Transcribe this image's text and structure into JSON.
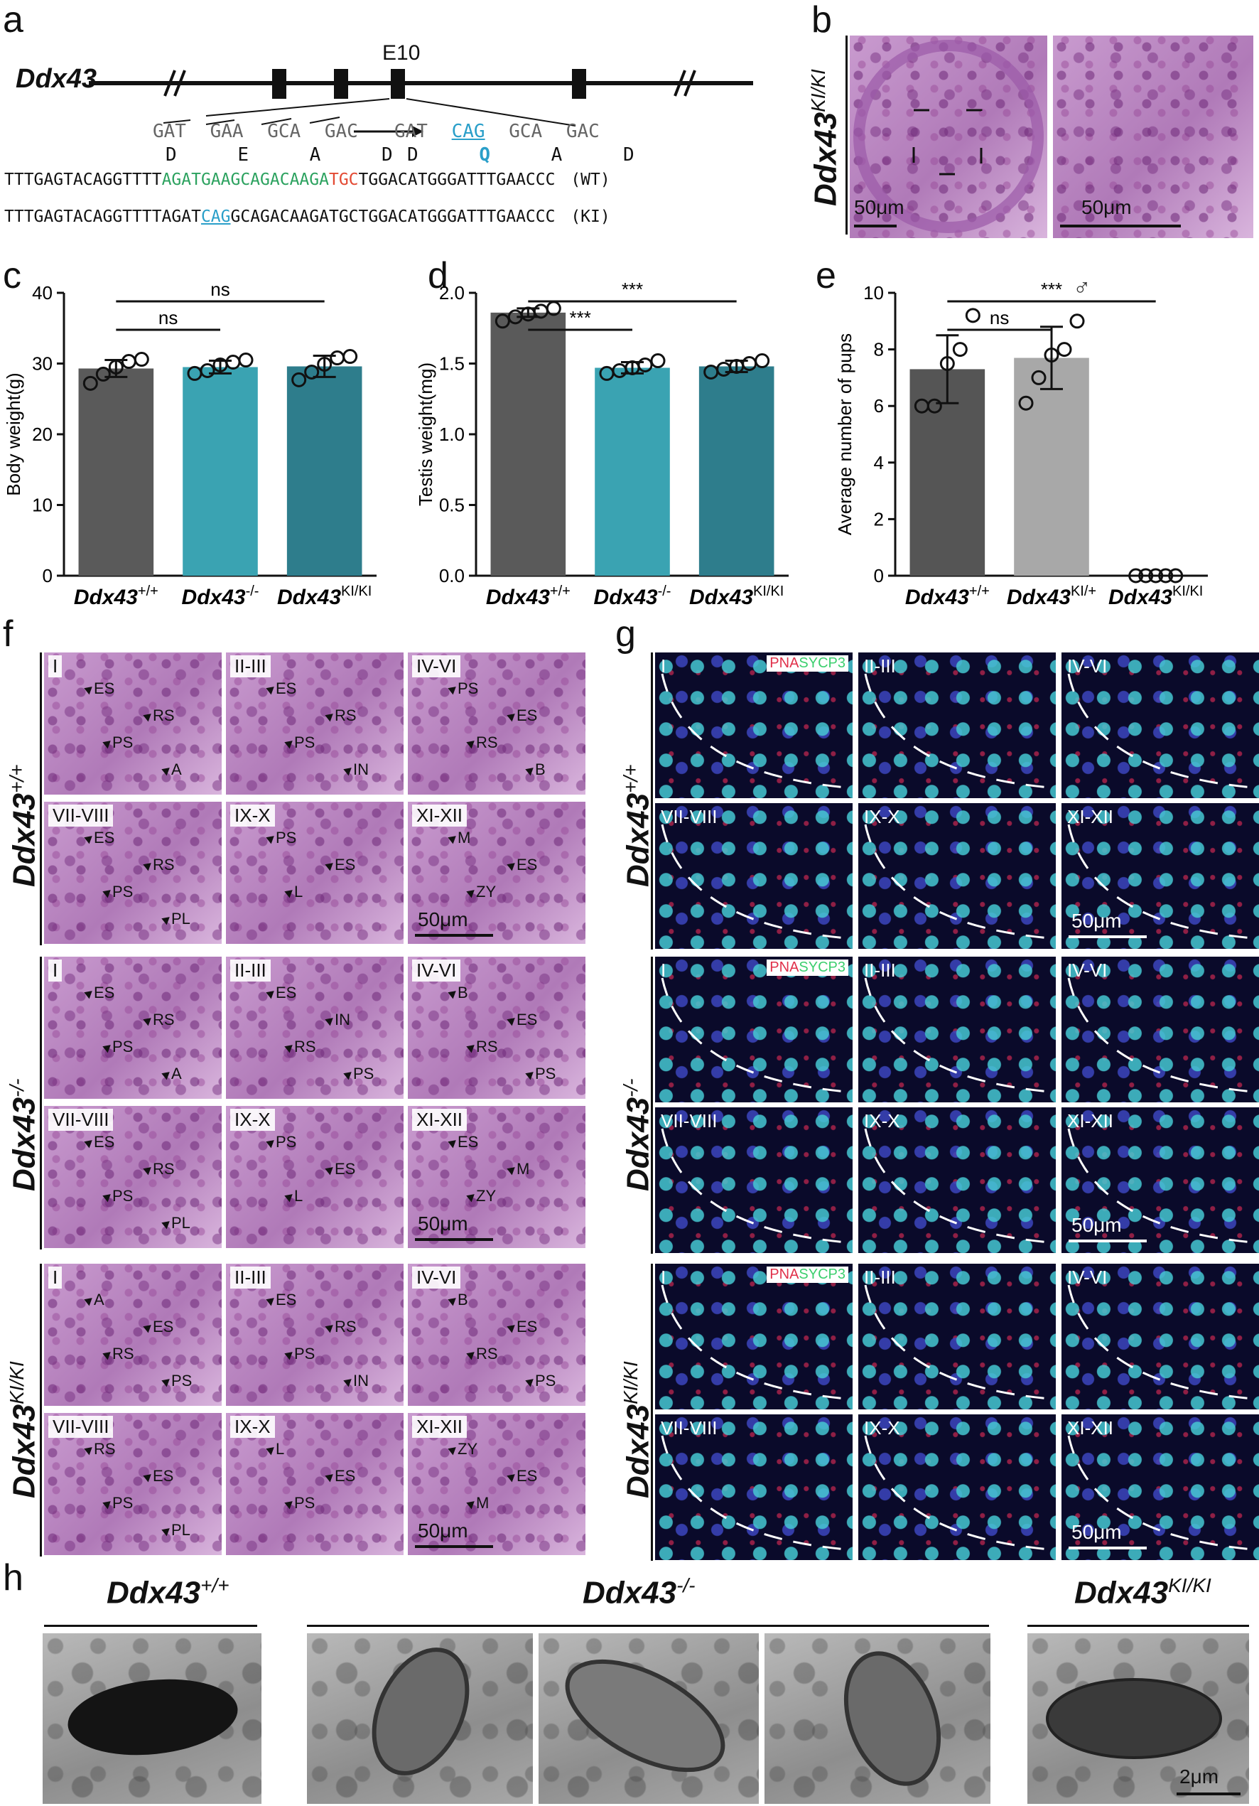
{
  "panels": {
    "a": "a",
    "b": "b",
    "c": "c",
    "d": "d",
    "e": "e",
    "f": "f",
    "g": "g",
    "h": "h"
  },
  "panel_a": {
    "gene": "Ddx43",
    "exon": "E10",
    "codons_wt": [
      "GAT",
      "GAA",
      "GCA",
      "GAC"
    ],
    "aa_wt": [
      "D",
      "E",
      "A",
      "D"
    ],
    "codons_ki": [
      "GAT",
      "CAG",
      "GCA",
      "GAC"
    ],
    "aa_ki": [
      "D",
      "Q",
      "A",
      "D"
    ],
    "seq_wt": {
      "part1": "TTTGAGTACAGGTTTT",
      "part2": "AGATGAAGCAGACAAGA",
      "part3": "TGC",
      "part4": "TGGACATGGGATTTGAACCC",
      "tag": "(WT)"
    },
    "seq_ki": {
      "part1": "TTTGAGTACAGGTTTTAGAT",
      "part2": "CAG",
      "part3": "GCAGACAAGATGCTGGACATGGGATTTGAACCC",
      "tag": "(KI)"
    },
    "colors": {
      "green": "#2ca25f",
      "red": "#e34a33",
      "cyan": "#2a9fc9"
    }
  },
  "panel_b": {
    "genotype": "Ddx43",
    "sup": "KI/KI",
    "scale1": "50μm",
    "scale2": "50μm"
  },
  "genotype_labels": {
    "wt": {
      "base": "Ddx43",
      "sup": "+/+"
    },
    "ko": {
      "base": "Ddx43",
      "sup": "-/-"
    },
    "het": {
      "base": "Ddx43",
      "sup": "KI/+"
    },
    "ki": {
      "base": "Ddx43",
      "sup": "KI/KI"
    }
  },
  "chart_data": [
    {
      "type": "bar",
      "panel": "c",
      "categories": [
        "Ddx43+/+",
        "Ddx43-/-",
        "Ddx43KI/KI"
      ],
      "values": [
        29.3,
        29.5,
        29.6
      ],
      "error": [
        1.2,
        0.9,
        1.5
      ],
      "points": [
        [
          27.2,
          28.5,
          29.5,
          30.3,
          30.6
        ],
        [
          28.6,
          29.0,
          29.8,
          30.2,
          30.5
        ],
        [
          27.7,
          28.8,
          29.9,
          30.8,
          31.0
        ]
      ],
      "ylabel": "Body weight(g)",
      "ylim": [
        0,
        40
      ],
      "yticks": [
        "0",
        "10",
        "20",
        "30",
        "40"
      ],
      "colors": [
        "#5a5a5a",
        "#3aa3b2",
        "#2e7d8c"
      ],
      "sig": [
        {
          "label": "ns",
          "from": 0,
          "to": 1
        },
        {
          "label": "ns",
          "from": 0,
          "to": 2
        }
      ]
    },
    {
      "type": "bar",
      "panel": "d",
      "categories": [
        "Ddx43+/+",
        "Ddx43-/-",
        "Ddx43KI/KI"
      ],
      "values": [
        1.86,
        1.47,
        1.48
      ],
      "error": [
        0.03,
        0.04,
        0.04
      ],
      "points": [
        [
          1.8,
          1.83,
          1.85,
          1.87,
          1.89
        ],
        [
          1.43,
          1.45,
          1.47,
          1.49,
          1.52
        ],
        [
          1.44,
          1.46,
          1.48,
          1.5,
          1.52
        ]
      ],
      "ylabel": "Testis weight(mg)",
      "ylim": [
        0,
        2.0
      ],
      "yticks": [
        "0.0",
        "0.5",
        "1.0",
        "1.5",
        "2.0"
      ],
      "colors": [
        "#5a5a5a",
        "#3aa3b2",
        "#2e7d8c"
      ],
      "sig": [
        {
          "label": "***",
          "from": 0,
          "to": 1
        },
        {
          "label": "***",
          "from": 0,
          "to": 2
        }
      ]
    },
    {
      "type": "bar",
      "panel": "e",
      "categories": [
        "Ddx43+/+",
        "Ddx43KI/+",
        "Ddx43KI/KI"
      ],
      "values": [
        7.3,
        7.7,
        0
      ],
      "error": [
        1.2,
        1.1,
        0
      ],
      "points": [
        [
          6.0,
          6.0,
          7.5,
          8.0,
          9.2
        ],
        [
          6.1,
          7.0,
          7.8,
          8.0,
          9.0
        ],
        [
          0,
          0,
          0,
          0,
          0
        ]
      ],
      "ylabel": "Average number of pups",
      "ylim": [
        0,
        10
      ],
      "yticks": [
        "0",
        "2",
        "4",
        "6",
        "8",
        "10"
      ],
      "colors": [
        "#555555",
        "#a8a8a8",
        "#888888"
      ],
      "sig": [
        {
          "label": "ns",
          "from": 0,
          "to": 1
        },
        {
          "label": "***",
          "from": 0,
          "to": 2
        }
      ],
      "symbol": "♂"
    }
  ],
  "panel_f": {
    "stages": [
      "I",
      "II-III",
      "IV-VI",
      "VII-VIII",
      "IX-X",
      "XI-XII"
    ],
    "scale": "50μm",
    "labels": {
      "wt": [
        [
          "ES",
          "RS",
          "PS",
          "A"
        ],
        [
          "ES",
          "RS",
          "PS",
          "IN"
        ],
        [
          "PS",
          "ES",
          "RS",
          "B"
        ],
        [
          "ES",
          "RS",
          "PS",
          "PL"
        ],
        [
          "PS",
          "ES",
          "L"
        ],
        [
          "M",
          "ES",
          "ZY"
        ]
      ],
      "ko": [
        [
          "ES",
          "RS",
          "PS",
          "A"
        ],
        [
          "ES",
          "IN",
          "RS",
          "PS"
        ],
        [
          "B",
          "ES",
          "RS",
          "PS"
        ],
        [
          "ES",
          "RS",
          "PS",
          "PL"
        ],
        [
          "PS",
          "ES",
          "L"
        ],
        [
          "ES",
          "M",
          "ZY"
        ]
      ],
      "ki": [
        [
          "A",
          "ES",
          "RS",
          "PS"
        ],
        [
          "ES",
          "RS",
          "PS",
          "IN"
        ],
        [
          "B",
          "ES",
          "RS",
          "PS"
        ],
        [
          "RS",
          "ES",
          "PS",
          "PL"
        ],
        [
          "L",
          "ES",
          "PS"
        ],
        [
          "ZY",
          "ES",
          "M"
        ]
      ]
    }
  },
  "panel_g": {
    "stages": [
      "I",
      "II-III",
      "IV-VI",
      "VII-VIII",
      "IX-X",
      "XI-XII"
    ],
    "pna": "PNA",
    "sycp3": "SYCP3",
    "scale": "50μm",
    "colors": {
      "pna": "#e0304a",
      "sycp3": "#3ccf6e"
    }
  },
  "panel_h": {
    "scale": "2μm"
  }
}
